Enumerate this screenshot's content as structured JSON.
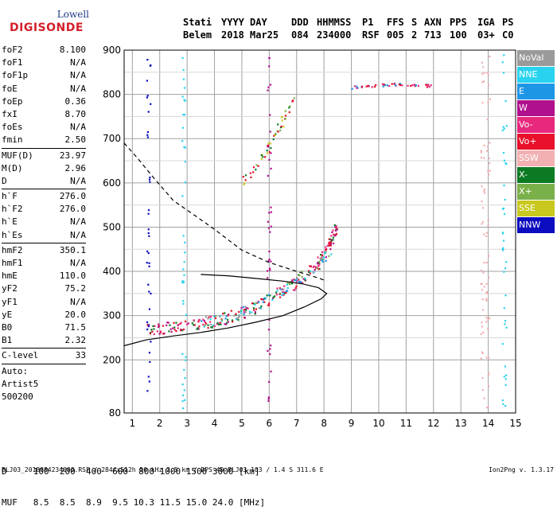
{
  "logo": {
    "line1": "Lowell",
    "line2": "DIGISONDE"
  },
  "header": {
    "labels": [
      "Stati",
      "YYYY",
      "DAY",
      "DDD",
      "HHMMSS",
      "P1",
      "FFS",
      "S",
      "AXN",
      "PPS",
      "IGA",
      "PS"
    ],
    "values": [
      "Belem",
      "2018",
      "Mar25",
      "084",
      "234000",
      "RSF",
      "005",
      "2",
      "713",
      "100",
      "03+",
      "C0"
    ]
  },
  "params_group1": [
    {
      "name": "foF2",
      "value": "8.100"
    },
    {
      "name": "foF1",
      "value": "N/A"
    },
    {
      "name": "foF1p",
      "value": "N/A"
    },
    {
      "name": "foE",
      "value": "N/A"
    },
    {
      "name": "foEp",
      "value": "0.36"
    },
    {
      "name": "fxI",
      "value": "8.70"
    },
    {
      "name": "foEs",
      "value": "N/A"
    },
    {
      "name": "fmin",
      "value": "2.50"
    }
  ],
  "params_group2": [
    {
      "name": "MUF(D)",
      "value": "23.97"
    },
    {
      "name": "M(D)",
      "value": "2.96"
    },
    {
      "name": "D",
      "value": "N/A"
    }
  ],
  "params_group3": [
    {
      "name": "h`F",
      "value": "276.0"
    },
    {
      "name": "h`F2",
      "value": "276.0"
    },
    {
      "name": "h`E",
      "value": "N/A"
    },
    {
      "name": "h`Es",
      "value": "N/A"
    }
  ],
  "params_group4": [
    {
      "name": "hmF2",
      "value": "350.1"
    },
    {
      "name": "hmF1",
      "value": "N/A"
    },
    {
      "name": "hmE",
      "value": "110.0"
    },
    {
      "name": "yF2",
      "value": "75.2"
    },
    {
      "name": "yF1",
      "value": "N/A"
    },
    {
      "name": "yE",
      "value": "20.0"
    },
    {
      "name": "B0",
      "value": "71.5"
    },
    {
      "name": "B1",
      "value": "2.32"
    }
  ],
  "params_group5": [
    {
      "name": "C-level",
      "value": "33"
    }
  ],
  "auto_lines": [
    "Auto:",
    "Artist5",
    "500200"
  ],
  "legend": [
    {
      "label": "NoVal",
      "color": "#9a9a9a"
    },
    {
      "label": "NNE",
      "color": "#29d3ef"
    },
    {
      "label": "E",
      "color": "#1e96e6"
    },
    {
      "label": "W",
      "color": "#b0108e"
    },
    {
      "label": "Vo-",
      "color": "#e8287c"
    },
    {
      "label": "Vo+",
      "color": "#e8102a"
    },
    {
      "label": "SSW",
      "color": "#f2b0b2"
    },
    {
      "label": "X-",
      "color": "#0c7a22"
    },
    {
      "label": "X+",
      "color": "#7ab04a"
    },
    {
      "label": "SSE",
      "color": "#c8c81e"
    },
    {
      "label": "NNW",
      "color": "#0c0cc0"
    }
  ],
  "d_table": {
    "row1_label": "D",
    "row1": [
      "100",
      "200",
      "400",
      "600",
      "800",
      "1000",
      "1500",
      "3000"
    ],
    "row1_unit": "[km]",
    "row2_label": "MUF",
    "row2": [
      "8.5",
      "8.5",
      "8.9",
      "9.5",
      "10.3",
      "11.5",
      "15.0",
      "24.0"
    ],
    "row2_unit": "[MHz]"
  },
  "footer": "BLJ03_2018084234000.RSF / 284fx512h 50 kHz 2.5 km / DPS-4D BLJ03 103 / 1.4 S 311.6 E",
  "version": "Ion2Png v. 1.3.17",
  "chart_data": {
    "type": "scatter",
    "xlim": [
      0.7,
      15.0
    ],
    "ylim": [
      80,
      900
    ],
    "x_ticks": [
      1,
      2,
      3,
      4,
      5,
      6,
      7,
      8,
      9,
      10,
      11,
      12,
      13,
      14,
      15
    ],
    "y_ticks": [
      80,
      200,
      300,
      400,
      500,
      600,
      700,
      800,
      900
    ],
    "xlabel": "",
    "ylabel": "",
    "grid": true,
    "legend_position": "right",
    "vo_trace_main": [
      [
        1.5,
        265
      ],
      [
        2.0,
        270
      ],
      [
        2.5,
        275
      ],
      [
        3.0,
        278
      ],
      [
        3.5,
        282
      ],
      [
        4.0,
        288
      ],
      [
        4.5,
        295
      ],
      [
        5.0,
        305
      ],
      [
        5.5,
        318
      ],
      [
        6.0,
        335
      ],
      [
        6.5,
        355
      ],
      [
        7.0,
        375
      ],
      [
        7.5,
        400
      ],
      [
        7.8,
        420
      ],
      [
        8.0,
        440
      ],
      [
        8.2,
        460
      ],
      [
        8.35,
        480
      ],
      [
        8.45,
        495
      ]
    ],
    "x_trace_main": [
      [
        3.5,
        285
      ],
      [
        4.0,
        290
      ],
      [
        4.5,
        298
      ],
      [
        5.0,
        308
      ],
      [
        5.5,
        320
      ],
      [
        6.0,
        338
      ],
      [
        6.5,
        358
      ],
      [
        7.0,
        380
      ],
      [
        7.5,
        405
      ],
      [
        8.0,
        430
      ],
      [
        8.3,
        445
      ]
    ],
    "f_layer_echo": [
      [
        5.0,
        600
      ],
      [
        5.3,
        620
      ],
      [
        5.6,
        645
      ],
      [
        5.9,
        670
      ],
      [
        6.1,
        690
      ],
      [
        6.3,
        715
      ],
      [
        6.5,
        740
      ],
      [
        6.7,
        765
      ],
      [
        6.9,
        790
      ]
    ],
    "spread_echo": [
      [
        9.0,
        815
      ],
      [
        9.5,
        818
      ],
      [
        10.0,
        820
      ],
      [
        10.5,
        822
      ],
      [
        11.0,
        822
      ],
      [
        11.5,
        821
      ],
      [
        12.0,
        818
      ]
    ],
    "profile_solid": [
      [
        0.7,
        232
      ],
      [
        1.5,
        245
      ],
      [
        2.5,
        254
      ],
      [
        3.5,
        262
      ],
      [
        4.5,
        272
      ],
      [
        5.5,
        285
      ],
      [
        6.5,
        300
      ],
      [
        7.3,
        320
      ],
      [
        7.9,
        338
      ],
      [
        8.1,
        350
      ],
      [
        7.8,
        363
      ],
      [
        7.2,
        372
      ],
      [
        6.5,
        378
      ],
      [
        5.5,
        384
      ],
      [
        4.5,
        390
      ],
      [
        3.5,
        393
      ]
    ],
    "profile_dashed": [
      [
        0.7,
        690
      ],
      [
        1.2,
        655
      ],
      [
        1.8,
        610
      ],
      [
        2.5,
        560
      ],
      [
        3.2,
        530
      ],
      [
        4.0,
        495
      ],
      [
        5.0,
        448
      ],
      [
        6.0,
        420
      ],
      [
        7.0,
        400
      ],
      [
        7.8,
        385
      ],
      [
        8.1,
        378
      ]
    ]
  }
}
